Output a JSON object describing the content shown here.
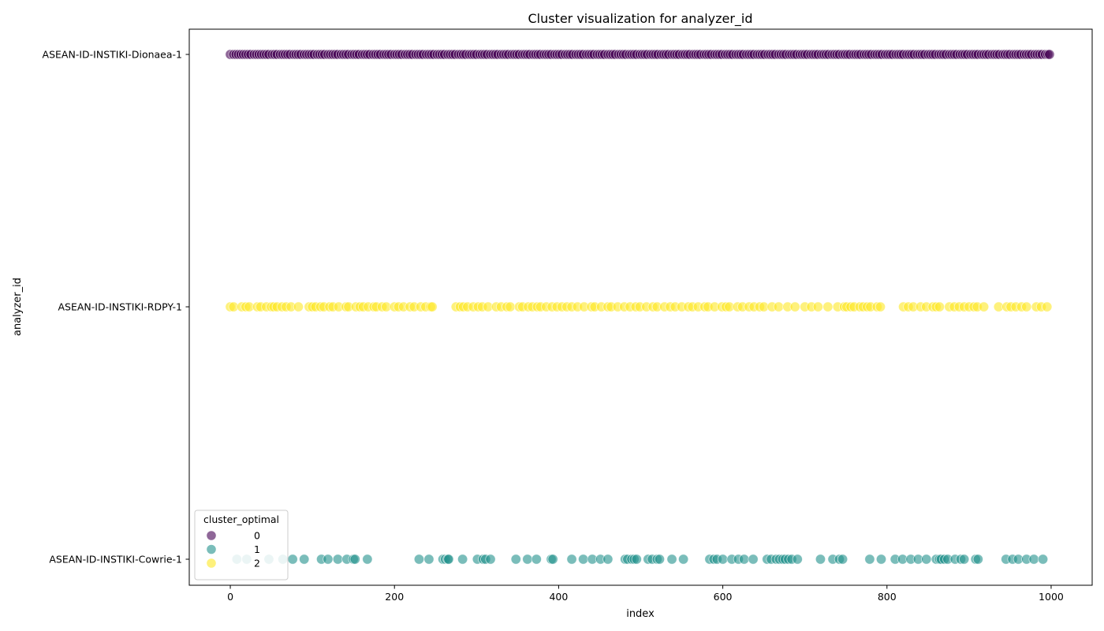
{
  "chart_data": {
    "type": "scatter",
    "title": "Cluster visualization for analyzer_id",
    "xlabel": "index",
    "ylabel": "analyzer_id",
    "xlim": [
      -50,
      1050
    ],
    "x_ticks": [
      0,
      200,
      400,
      600,
      800,
      1000
    ],
    "categories": [
      "ASEAN-ID-INSTIKI-Dionaea-1",
      "ASEAN-ID-INSTIKI-RDPY-1",
      "ASEAN-ID-INSTIKI-Cowrie-1"
    ],
    "legend": {
      "title": "cluster_optimal",
      "placement": "lower-left",
      "entries": [
        {
          "label": "0",
          "color": "#440154"
        },
        {
          "label": "1",
          "color": "#21918c"
        },
        {
          "label": "2",
          "color": "#fde725"
        }
      ]
    },
    "marker_alpha": 0.6,
    "grid": false,
    "series": [
      {
        "cluster": "0",
        "category": "ASEAN-ID-INSTIKI-Dionaea-1",
        "color": "#440154",
        "x": [
          0,
          4,
          7,
          10,
          13,
          16,
          19,
          22,
          25,
          29,
          32,
          35,
          38,
          41,
          44,
          47,
          51,
          54,
          57,
          61,
          64,
          67,
          70,
          73,
          77,
          80,
          83,
          86,
          90,
          93,
          96,
          99,
          102,
          106,
          109,
          112,
          115,
          119,
          122,
          125,
          128,
          131,
          135,
          138,
          141,
          144,
          148,
          151,
          154,
          157,
          161,
          164,
          167,
          170,
          174,
          177,
          180,
          183,
          187,
          190,
          193,
          196,
          200,
          203,
          206,
          209,
          213,
          216,
          219,
          222,
          226,
          229,
          232,
          235,
          239,
          242,
          245,
          248,
          252,
          255,
          258,
          261,
          265,
          268,
          271,
          274,
          278,
          281,
          284,
          287,
          291,
          294,
          297,
          300,
          304,
          307,
          310,
          313,
          317,
          320,
          323,
          326,
          330,
          333,
          336,
          339,
          343,
          346,
          349,
          352,
          356,
          359,
          362,
          365,
          369,
          372,
          375,
          378,
          382,
          385,
          388,
          391,
          395,
          398,
          401,
          404,
          408,
          411,
          414,
          417,
          421,
          424,
          427,
          430,
          434,
          437,
          440,
          443,
          447,
          450,
          453,
          456,
          460,
          463,
          466,
          469,
          473,
          476,
          479,
          482,
          486,
          489,
          492,
          495,
          499,
          502,
          505,
          508,
          512,
          515,
          518,
          521,
          525,
          528,
          531,
          534,
          538,
          541,
          544,
          547,
          551,
          554,
          557,
          560,
          564,
          567,
          570,
          573,
          577,
          580,
          583,
          586,
          590,
          593,
          596,
          599,
          603,
          606,
          609,
          612,
          616,
          619,
          622,
          625,
          629,
          632,
          635,
          638,
          642,
          645,
          648,
          651,
          655,
          658,
          661,
          664,
          668,
          671,
          674,
          677,
          681,
          684,
          687,
          690,
          694,
          697,
          700,
          703,
          707,
          710,
          713,
          716,
          720,
          723,
          726,
          729,
          733,
          736,
          739,
          742,
          746,
          749,
          752,
          755,
          759,
          762,
          765,
          768,
          772,
          775,
          778,
          781,
          785,
          788,
          791,
          794,
          798,
          801,
          804,
          807,
          811,
          814,
          817,
          820,
          824,
          827,
          830,
          833,
          837,
          840,
          843,
          846,
          850,
          853,
          856,
          859,
          863,
          866,
          869,
          872,
          876,
          879,
          882,
          885,
          889,
          892,
          895,
          898,
          902,
          905,
          908,
          911,
          915,
          918,
          921,
          924,
          928,
          931,
          934,
          937,
          941,
          944,
          947,
          950,
          954,
          957,
          960,
          963,
          967,
          970,
          973,
          976,
          980,
          983,
          986,
          989,
          993,
          996,
          998
        ]
      },
      {
        "cluster": "2",
        "category": "ASEAN-ID-INSTIKI-RDPY-1",
        "color": "#fde725",
        "x": [
          0,
          4,
          14,
          19,
          23,
          33,
          37,
          44,
          50,
          53,
          57,
          63,
          68,
          74,
          83,
          96,
          100,
          104,
          110,
          114,
          121,
          125,
          132,
          141,
          144,
          153,
          158,
          162,
          168,
          175,
          178,
          185,
          190,
          200,
          205,
          211,
          219,
          224,
          232,
          238,
          244,
          246,
          275,
          280,
          284,
          289,
          296,
          302,
          307,
          314,
          324,
          330,
          337,
          341,
          352,
          356,
          363,
          368,
          374,
          378,
          385,
          392,
          398,
          404,
          410,
          416,
          423,
          431,
          440,
          444,
          452,
          460,
          464,
          472,
          480,
          487,
          494,
          499,
          507,
          515,
          520,
          529,
          536,
          542,
          550,
          558,
          563,
          570,
          578,
          582,
          590,
          599,
          604,
          608,
          618,
          624,
          632,
          638,
          645,
          650,
          660,
          668,
          679,
          688,
          700,
          708,
          716,
          728,
          740,
          748,
          751,
          756,
          760,
          767,
          771,
          776,
          780,
          788,
          792,
          820,
          826,
          832,
          841,
          848,
          856,
          860,
          864,
          876,
          882,
          888,
          894,
          900,
          906,
          910,
          918,
          936,
          946,
          951,
          957,
          964,
          970,
          982,
          988,
          995
        ]
      },
      {
        "cluster": "1",
        "category": "ASEAN-ID-INSTIKI-Cowrie-1",
        "color": "#21918c",
        "x": [
          8,
          20,
          47,
          64,
          76,
          90,
          111,
          119,
          131,
          142,
          150,
          152,
          167,
          230,
          242,
          259,
          262,
          265,
          266,
          283,
          301,
          308,
          311,
          317,
          348,
          362,
          373,
          391,
          393,
          416,
          430,
          441,
          451,
          460,
          481,
          484,
          489,
          492,
          495,
          509,
          514,
          520,
          523,
          538,
          552,
          584,
          589,
          593,
          600,
          611,
          619,
          626,
          637,
          654,
          659,
          665,
          669,
          673,
          676,
          680,
          684,
          691,
          719,
          734,
          742,
          746,
          779,
          793,
          810,
          819,
          829,
          838,
          848,
          860,
          864,
          866,
          870,
          874,
          883,
          890,
          894,
          908,
          911,
          945,
          953,
          960,
          970,
          979,
          990
        ]
      }
    ]
  }
}
